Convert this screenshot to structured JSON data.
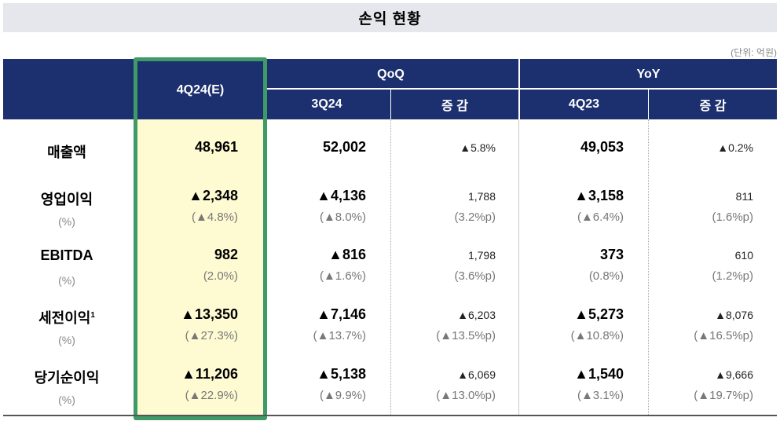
{
  "title": "손익 현황",
  "unit": "(단위: 억원)",
  "header": {
    "period": "4Q24(E)",
    "qoq": "QoQ",
    "yoy": "YoY",
    "q3": "3Q24",
    "change1": "증 감",
    "q4_23": "4Q23",
    "change2": "증 감"
  },
  "rows": [
    {
      "label": "매출액",
      "sup": "",
      "sub": "",
      "cur": "48,961",
      "cur_pct": "",
      "q3": "52,002",
      "q3_pct": "",
      "qoq": "▲5.8%",
      "qoq_pct": "",
      "ly": "49,053",
      "ly_pct": "",
      "yoy": "▲0.2%",
      "yoy_pct": ""
    },
    {
      "label": "영업이익",
      "sup": "",
      "sub": "(%)",
      "cur": "▲2,348",
      "cur_pct": "(▲4.8%)",
      "q3": "▲4,136",
      "q3_pct": "(▲8.0%)",
      "qoq": "1,788",
      "qoq_pct": "(3.2%p)",
      "ly": "▲3,158",
      "ly_pct": "(▲6.4%)",
      "yoy": "811",
      "yoy_pct": "(1.6%p)"
    },
    {
      "label": "EBITDA",
      "sup": "",
      "sub": "(%)",
      "cur": "982",
      "cur_pct": "(2.0%)",
      "q3": "▲816",
      "q3_pct": "(▲1.6%)",
      "qoq": "1,798",
      "qoq_pct": "(3.6%p)",
      "ly": "373",
      "ly_pct": "(0.8%)",
      "yoy": "610",
      "yoy_pct": "(1.2%p)"
    },
    {
      "label": "세전이익",
      "sup": "1",
      "sub": "(%)",
      "cur": "▲13,350",
      "cur_pct": "(▲27.3%)",
      "q3": "▲7,146",
      "q3_pct": "(▲13.7%)",
      "qoq": "▲6,203",
      "qoq_pct": "(▲13.5%p)",
      "ly": "▲5,273",
      "ly_pct": "(▲10.8%)",
      "yoy": "▲8,076",
      "yoy_pct": "(▲16.5%p)"
    },
    {
      "label": "당기순이익",
      "sup": "",
      "sub": "(%)",
      "cur": "▲11,206",
      "cur_pct": "(▲22.9%)",
      "q3": "▲5,138",
      "q3_pct": "(▲9.9%)",
      "qoq": "▲6,069",
      "qoq_pct": "(▲13.0%p)",
      "ly": "▲1,540",
      "ly_pct": "(▲3.1%)",
      "yoy": "▲9,666",
      "yoy_pct": "(▲19.7%p)"
    }
  ]
}
